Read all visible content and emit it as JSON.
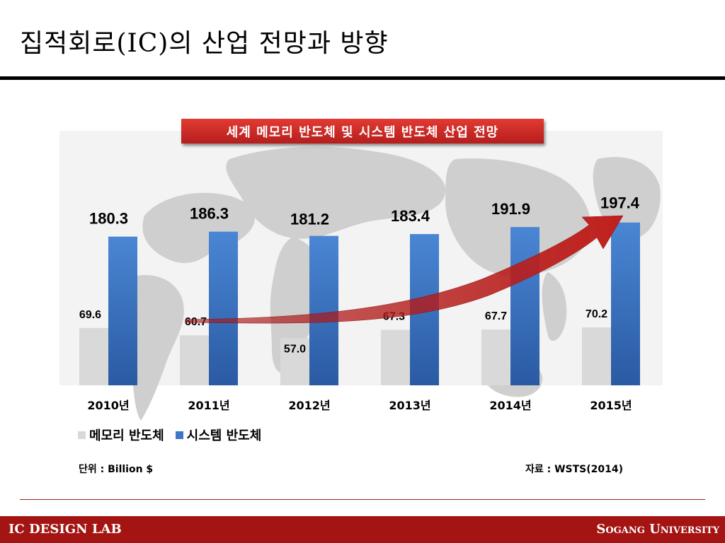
{
  "slide": {
    "title": "집적회로(IC)의 산업 전망과 방향"
  },
  "footer": {
    "left": "IC DESIGN LAB",
    "right": "Sogang University"
  },
  "notes": {
    "unit": "단위 : Billion $",
    "source": "자료 : WSTS(2014)"
  },
  "colors": {
    "memory": "#d9d9d9",
    "system": "#3f77c4",
    "banner": "#c8271f",
    "arrow": "#c0201d",
    "footer": "#a31412"
  },
  "chart_data": {
    "type": "bar",
    "title": "세계 메모리 반도체 및 시스템 반도체 산업 전망",
    "categories": [
      "2010년",
      "2011년",
      "2012년",
      "2013년",
      "2014년",
      "2015년"
    ],
    "series": [
      {
        "name": "메모리 반도체",
        "values": [
          69.6,
          60.7,
          57.0,
          67.3,
          67.7,
          70.2
        ]
      },
      {
        "name": "시스템 반도체",
        "values": [
          180.3,
          186.3,
          181.2,
          183.4,
          191.9,
          197.4
        ]
      }
    ],
    "ylim": [
      0,
      240
    ],
    "grid": false,
    "legend": "bottom-left",
    "annotations": [
      "upward trend arrow"
    ]
  }
}
